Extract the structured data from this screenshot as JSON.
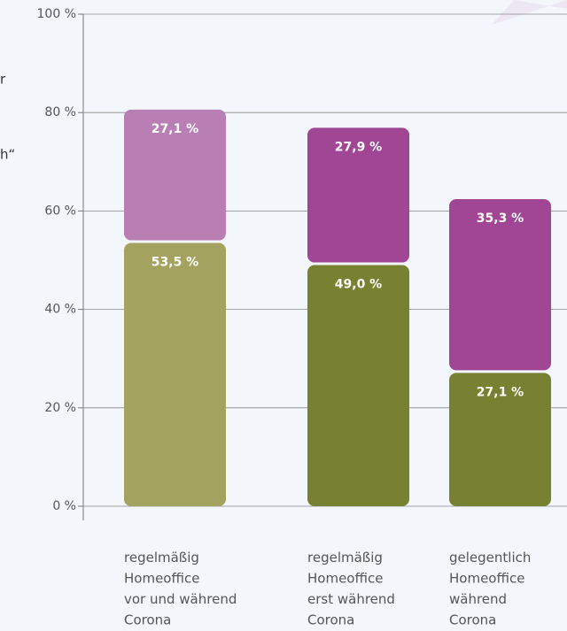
{
  "chart_data": {
    "type": "stacked_bar",
    "annotations": [
      "r",
      "h“"
    ],
    "categories": [
      "regelmäßig\nHomeoffice\nvor und während\nCorona",
      "regelmäßig\nHomeoffice\nerst während\nCorona",
      "gelegentlich\nHomeoffice\nwährend\nCorona"
    ],
    "series": [
      {
        "colors": [
          "#a3a25f",
          "#768132",
          "#768132"
        ],
        "values": [
          53.5,
          49.0,
          27.1
        ],
        "value_labels": [
          "53,5 %",
          "49,0 %",
          "27,1 %"
        ]
      },
      {
        "colors": [
          "#b97fb5",
          "#a04694",
          "#a04694"
        ],
        "values": [
          27.1,
          27.9,
          35.3
        ],
        "value_labels": [
          "27,1 %",
          "27,9 %",
          "35,3 %"
        ]
      }
    ],
    "ylim": [
      0,
      100
    ],
    "yticks": [
      {
        "value": 0,
        "label": "0 %"
      },
      {
        "value": 20,
        "label": "20 %"
      },
      {
        "value": 40,
        "label": "40 %"
      },
      {
        "value": 60,
        "label": "60 %"
      },
      {
        "value": 80,
        "label": "80 %"
      },
      {
        "value": 100,
        "label": "100 %"
      }
    ],
    "grid": true
  }
}
